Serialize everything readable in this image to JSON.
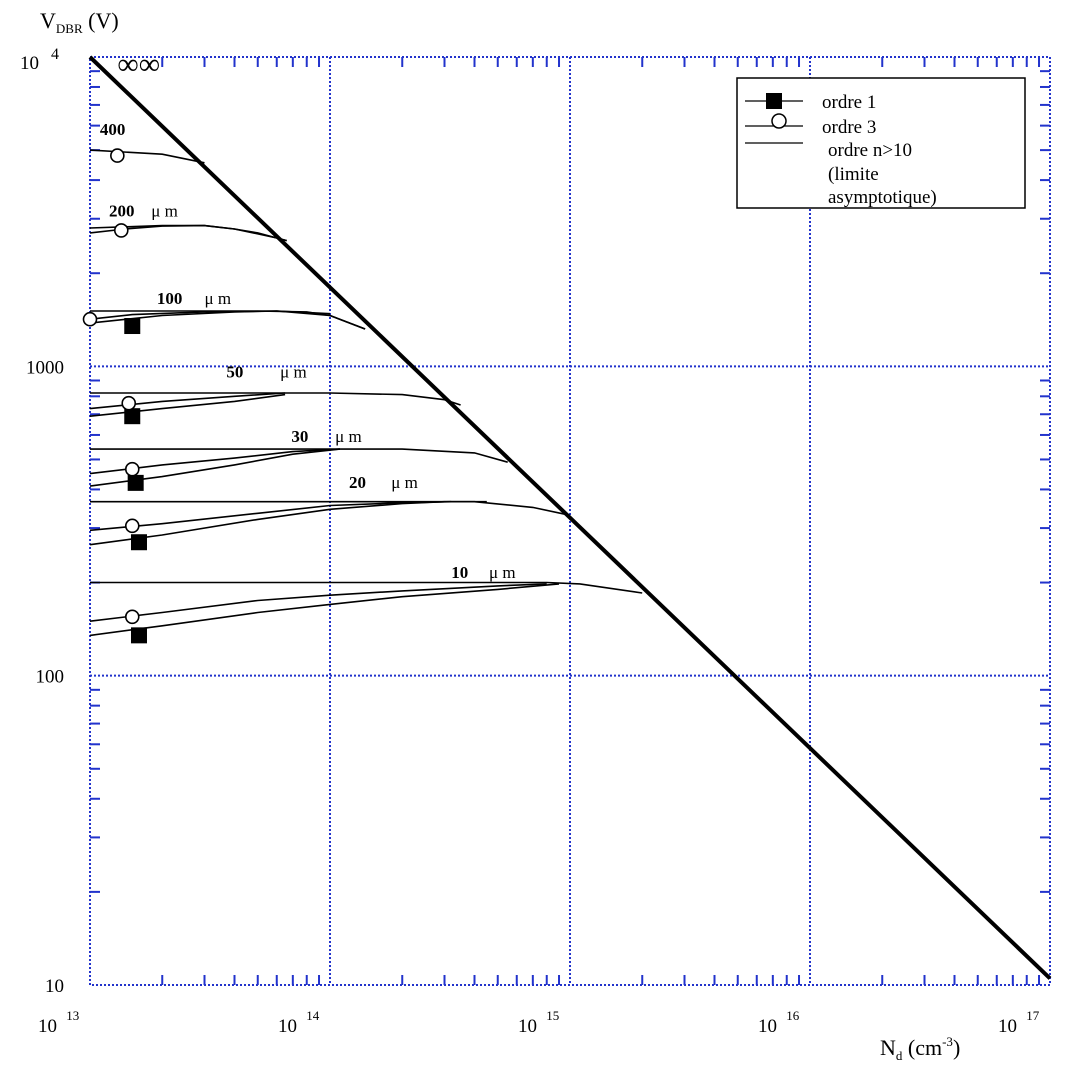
{
  "chart_data": {
    "type": "line",
    "x_scale": "log",
    "y_scale": "log",
    "xlim": [
      10000000000000.0,
      1e+17
    ],
    "ylim": [
      10,
      10000
    ],
    "grid": true,
    "ylabel": {
      "main": "V",
      "sub": "DBR",
      "unit": " (V)"
    },
    "xlabel": {
      "main": "N",
      "sub": "d",
      "unit_pre": " (cm",
      "unit_sup": "-3",
      "unit_post": ")"
    },
    "x_ticks": [
      {
        "value": 10000000000000.0,
        "base": "10",
        "exp": "13"
      },
      {
        "value": 100000000000000.0,
        "base": "10",
        "exp": "14"
      },
      {
        "value": 1000000000000000.0,
        "base": "10",
        "exp": "15"
      },
      {
        "value": 1e+16,
        "base": "10",
        "exp": "16"
      },
      {
        "value": 1e+17,
        "base": "10",
        "exp": "17"
      }
    ],
    "y_ticks": [
      {
        "value": 10,
        "label": "10",
        "exp": ""
      },
      {
        "value": 100,
        "label": "100",
        "exp": ""
      },
      {
        "value": 1000,
        "label": "1000",
        "exp": ""
      },
      {
        "value": 10000,
        "label": "10",
        "exp": "4"
      }
    ],
    "legend": {
      "position": "top-right",
      "items": [
        {
          "marker": "filled-square",
          "label": "ordre 1"
        },
        {
          "marker": "open-circle",
          "label": "ordre 3"
        },
        {
          "marker": "none",
          "label": "ordre n>10"
        },
        {
          "marker": "none",
          "label": "(limite"
        },
        {
          "marker": "none",
          "label": "asymptotique)"
        }
      ]
    },
    "limit_line": {
      "x": [
        10000000000000.0,
        1e+17
      ],
      "y": [
        10000,
        10.5
      ]
    },
    "families": [
      {
        "label": "∞∞",
        "label_bold": false,
        "label_x": 13000000000000.0,
        "label_y": 8800,
        "asymptotic": [],
        "order1": [],
        "order3": []
      },
      {
        "label": "400",
        "label_bold": true,
        "label_x": 11000000000000.0,
        "label_y": 5600,
        "asymptotic": {
          "x": [
            10000000000000.0,
            20000000000000.0,
            30000000000000.0
          ],
          "y": [
            5000,
            4850,
            4550
          ]
        },
        "order1": [],
        "order3": [
          {
            "x": [
              13000000000000.0
            ],
            "y": [
              4800
            ]
          }
        ]
      },
      {
        "label": "200",
        "label_bold": true,
        "label_x": 12000000000000.0,
        "label_y": 3050,
        "unit": "μ  m",
        "unit_x": 18000000000000.0,
        "asymptotic": {
          "x": [
            10000000000000.0,
            20000000000000.0,
            30000000000000.0,
            40000000000000.0,
            50000000000000.0,
            60000000000000.0,
            66000000000000.0
          ],
          "y": [
            2800,
            2850,
            2850,
            2780,
            2700,
            2600,
            2550
          ]
        },
        "order1": [],
        "order3": [
          {
            "x": [
              10000000000000.0,
              14000000000000.0,
              20000000000000.0,
              30000000000000.0,
              40000000000000.0,
              50000000000000.0,
              60000000000000.0,
              66000000000000.0
            ],
            "y": [
              2700,
              2780,
              2840,
              2850,
              2780,
              2680,
              2600,
              2550
            ],
            "mx": 13500000000000.0,
            "my": 2750
          }
        ]
      },
      {
        "label": "100",
        "label_bold": true,
        "label_x": 19000000000000.0,
        "label_y": 1590,
        "unit": "μ  m",
        "unit_x": 30000000000000.0,
        "asymptotic": {
          "x": [
            10000000000000.0,
            20000000000000.0,
            50000000000000.0,
            80000000000000.0,
            100000000000000.0,
            140000000000000.0
          ],
          "y": [
            1510,
            1510,
            1510,
            1500,
            1460,
            1320
          ]
        },
        "order1": [
          {
            "x": [
              10000000000000.0,
              20000000000000.0,
              40000000000000.0,
              60000000000000.0,
              100000000000000.0,
              140000000000000.0
            ],
            "y": [
              1380,
              1460,
              1500,
              1510,
              1460,
              1320
            ],
            "mx": 15000000000000.0,
            "my": 1350
          }
        ],
        "order3": [
          {
            "x": [
              10000000000000.0,
              15000000000000.0,
              30000000000000.0,
              60000000000000.0,
              100000000000000.0
            ],
            "y": [
              1420,
              1470,
              1500,
              1510,
              1480
            ]
          }
        ]
      },
      {
        "label": "50",
        "label_bold": true,
        "label_x": 37000000000000.0,
        "label_y": 920,
        "unit": "μ   m",
        "unit_x": 62000000000000.0,
        "asymptotic": {
          "x": [
            10000000000000.0,
            50000000000000.0,
            100000000000000.0,
            200000000000000.0,
            300000000000000.0,
            350000000000000.0
          ],
          "y": [
            820,
            820,
            820,
            810,
            780,
            750
          ]
        },
        "order1": [
          {
            "x": [
              10000000000000.0,
              20000000000000.0,
              40000000000000.0,
              65000000000000.0
            ],
            "y": [
              690,
              730,
              770,
              810
            ],
            "mx": 15000000000000.0,
            "my": 690
          }
        ],
        "order3": [
          {
            "x": [
              10000000000000.0,
              20000000000000.0,
              40000000000000.0,
              65000000000000.0
            ],
            "y": [
              730,
              770,
              800,
              820
            ],
            "mx": 14500000000000.0,
            "my": 760
          }
        ]
      },
      {
        "label": "30",
        "label_bold": true,
        "label_x": 69000000000000.0,
        "label_y": 570,
        "unit": "μ   m",
        "unit_x": 105000000000000.0,
        "asymptotic": {
          "x": [
            10000000000000.0,
            50000000000000.0,
            100000000000000.0,
            200000000000000.0,
            400000000000000.0,
            550000000000000.0
          ],
          "y": [
            540,
            540,
            540,
            540,
            525,
            490
          ]
        },
        "order1": [
          {
            "x": [
              10000000000000.0,
              20000000000000.0,
              40000000000000.0,
              70000000000000.0,
              110000000000000.0
            ],
            "y": [
              410,
              440,
              480,
              520,
              540
            ],
            "mx": 15500000000000.0,
            "my": 420
          }
        ],
        "order3": [
          {
            "x": [
              10000000000000.0,
              20000000000000.0,
              40000000000000.0,
              70000000000000.0,
              110000000000000.0
            ],
            "y": [
              450,
              480,
              505,
              530,
              540
            ],
            "mx": 15000000000000.0,
            "my": 465
          }
        ]
      },
      {
        "label": "20",
        "label_bold": true,
        "label_x": 120000000000000.0,
        "label_y": 405,
        "unit": "μ   m",
        "unit_x": 180000000000000.0,
        "asymptotic": {
          "x": [
            10000000000000.0,
            50000000000000.0,
            100000000000000.0,
            200000000000000.0,
            400000000000000.0,
            700000000000000.0,
            1000000000000000.0
          ],
          "y": [
            365,
            365,
            365,
            365,
            365,
            350,
            330
          ]
        },
        "order1": [
          {
            "x": [
              10000000000000.0,
              20000000000000.0,
              50000000000000.0,
              100000000000000.0,
              200000000000000.0,
              300000000000000.0,
              450000000000000.0
            ],
            "y": [
              265,
              285,
              320,
              345,
              360,
              365,
              365
            ],
            "mx": 16000000000000.0,
            "my": 270
          }
        ],
        "order3": [
          {
            "x": [
              10000000000000.0,
              20000000000000.0,
              50000000000000.0,
              100000000000000.0,
              200000000000000.0,
              320000000000000.0
            ],
            "y": [
              295,
              310,
              335,
              355,
              362,
              365
            ],
            "mx": 15000000000000.0,
            "my": 305
          }
        ]
      },
      {
        "label": "10",
        "label_bold": true,
        "label_x": 320000000000000.0,
        "label_y": 207,
        "unit": "μ   m",
        "unit_x": 460000000000000.0,
        "asymptotic": {
          "x": [
            10000000000000.0,
            100000000000000.0,
            500000000000000.0,
            800000000000000.0,
            1100000000000000.0,
            2000000000000000.0
          ],
          "y": [
            200,
            200,
            200,
            200,
            198,
            185
          ]
        },
        "order1": [
          {
            "x": [
              10000000000000.0,
              20000000000000.0,
              50000000000000.0,
              100000000000000.0,
              200000000000000.0,
              500000000000000.0,
              900000000000000.0
            ],
            "y": [
              135,
              145,
              160,
              170,
              180,
              190,
              198
            ],
            "mx": 16000000000000.0,
            "my": 135
          }
        ],
        "order3": [
          {
            "x": [
              10000000000000.0,
              20000000000000.0,
              50000000000000.0,
              100000000000000.0,
              200000000000000.0,
              500000000000000.0,
              800000000000000.0
            ],
            "y": [
              150,
              160,
              175,
              182,
              188,
              195,
              198
            ],
            "mx": 15000000000000.0,
            "my": 155
          }
        ]
      }
    ]
  }
}
